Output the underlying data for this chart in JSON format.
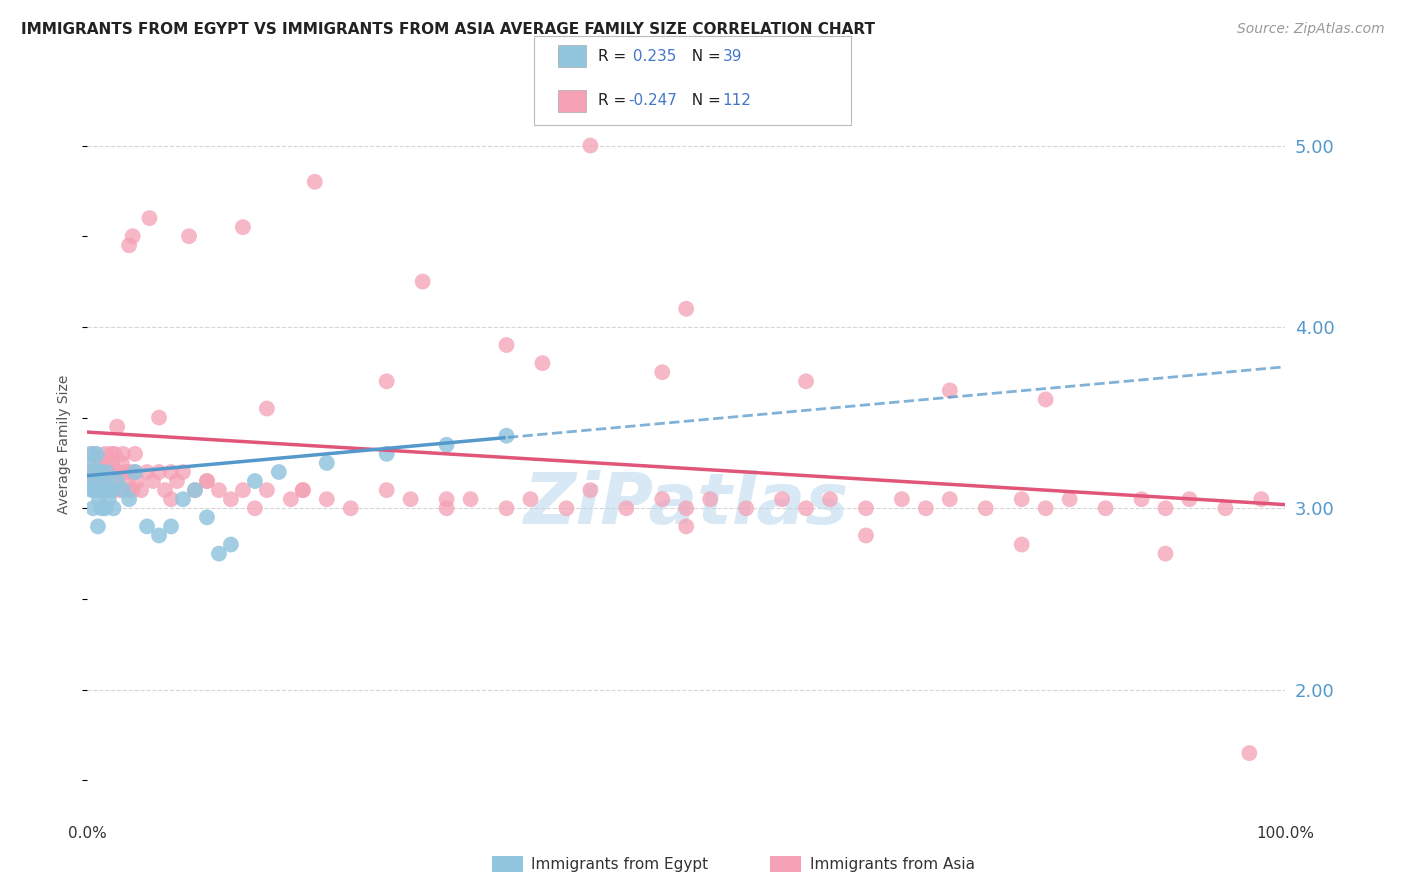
{
  "title": "IMMIGRANTS FROM EGYPT VS IMMIGRANTS FROM ASIA AVERAGE FAMILY SIZE CORRELATION CHART",
  "source": "Source: ZipAtlas.com",
  "ylabel": "Average Family Size",
  "legend_label1": "Immigrants from Egypt",
  "legend_label2": "Immigrants from Asia",
  "xlim": [
    0,
    100
  ],
  "ylim": [
    1.3,
    5.4
  ],
  "yticks_right": [
    2.0,
    3.0,
    4.0,
    5.0
  ],
  "color_egypt": "#92c5de",
  "color_asia": "#f4a0b5",
  "color_egypt_line": "#5599cc",
  "color_asia_line": "#e05578",
  "color_right_axis": "#5599cc",
  "background_color": "#ffffff",
  "grid_color": "#cccccc",
  "title_fontsize": 11,
  "axis_label_fontsize": 10,
  "tick_fontsize": 11,
  "source_fontsize": 10,
  "watermark_text": "ZiPatlas",
  "legend_r1_text": "R =  0.235   N =  39",
  "legend_r2_text": "R = -0.247   N = 112",
  "egypt_x": [
    0.2,
    0.3,
    0.4,
    0.5,
    0.5,
    0.6,
    0.7,
    0.8,
    0.9,
    1.0,
    1.0,
    1.1,
    1.2,
    1.3,
    1.4,
    1.5,
    1.6,
    1.7,
    1.8,
    2.0,
    2.2,
    2.5,
    3.0,
    3.5,
    4.0,
    5.0,
    6.0,
    7.0,
    8.0,
    9.0,
    10.0,
    11.0,
    12.0,
    14.0,
    16.0,
    20.0,
    25.0,
    30.0,
    35.0
  ],
  "egypt_y": [
    3.15,
    3.3,
    3.1,
    3.25,
    3.0,
    3.2,
    3.1,
    3.3,
    2.9,
    3.15,
    3.05,
    3.2,
    3.0,
    3.15,
    3.1,
    3.0,
    3.2,
    3.1,
    3.05,
    3.1,
    3.0,
    3.15,
    3.1,
    3.05,
    3.2,
    2.9,
    2.85,
    2.9,
    3.05,
    3.1,
    2.95,
    2.75,
    2.8,
    3.15,
    3.2,
    3.25,
    3.3,
    3.35,
    3.4
  ],
  "asia_x": [
    0.3,
    0.4,
    0.5,
    0.6,
    0.7,
    0.8,
    0.9,
    1.0,
    1.1,
    1.2,
    1.3,
    1.4,
    1.5,
    1.6,
    1.7,
    1.8,
    1.9,
    2.0,
    2.1,
    2.2,
    2.3,
    2.4,
    2.5,
    2.7,
    2.9,
    3.0,
    3.2,
    3.4,
    3.5,
    3.6,
    3.8,
    4.0,
    4.2,
    4.5,
    5.0,
    5.5,
    6.0,
    6.5,
    7.0,
    7.5,
    8.0,
    9.0,
    10.0,
    11.0,
    12.0,
    13.0,
    14.0,
    15.0,
    17.0,
    18.0,
    20.0,
    22.0,
    25.0,
    27.0,
    30.0,
    32.0,
    35.0,
    37.0,
    40.0,
    42.0,
    45.0,
    48.0,
    50.0,
    52.0,
    55.0,
    58.0,
    60.0,
    62.0,
    65.0,
    68.0,
    70.0,
    72.0,
    75.0,
    78.0,
    80.0,
    82.0,
    85.0,
    88.0,
    90.0,
    92.0,
    95.0,
    98.0,
    19.0,
    13.0,
    8.5,
    5.2,
    3.8,
    3.5,
    42.0,
    28.0,
    50.0,
    35.0,
    48.0,
    60.0,
    72.0,
    80.0,
    38.0,
    25.0,
    15.0,
    6.0,
    2.5,
    2.0,
    4.0,
    7.0,
    10.0,
    18.0,
    30.0,
    50.0,
    65.0,
    78.0,
    90.0,
    97.0
  ],
  "asia_y": [
    3.2,
    3.15,
    3.3,
    3.1,
    3.2,
    3.25,
    3.15,
    3.2,
    3.1,
    3.25,
    3.2,
    3.15,
    3.3,
    3.1,
    3.2,
    3.25,
    3.1,
    3.2,
    3.25,
    3.1,
    3.3,
    3.15,
    3.2,
    3.1,
    3.25,
    3.3,
    3.2,
    3.15,
    3.1,
    3.2,
    3.1,
    3.2,
    3.15,
    3.1,
    3.2,
    3.15,
    3.2,
    3.1,
    3.05,
    3.15,
    3.2,
    3.1,
    3.15,
    3.1,
    3.05,
    3.1,
    3.0,
    3.1,
    3.05,
    3.1,
    3.05,
    3.0,
    3.1,
    3.05,
    3.0,
    3.05,
    3.0,
    3.05,
    3.0,
    3.1,
    3.0,
    3.05,
    3.0,
    3.05,
    3.0,
    3.05,
    3.0,
    3.05,
    3.0,
    3.05,
    3.0,
    3.05,
    3.0,
    3.05,
    3.0,
    3.05,
    3.0,
    3.05,
    3.0,
    3.05,
    3.0,
    3.05,
    4.8,
    4.55,
    4.5,
    4.6,
    4.5,
    4.45,
    5.0,
    4.25,
    4.1,
    3.9,
    3.75,
    3.7,
    3.65,
    3.6,
    3.8,
    3.7,
    3.55,
    3.5,
    3.45,
    3.3,
    3.3,
    3.2,
    3.15,
    3.1,
    3.05,
    2.9,
    2.85,
    2.8,
    2.75,
    1.65
  ]
}
